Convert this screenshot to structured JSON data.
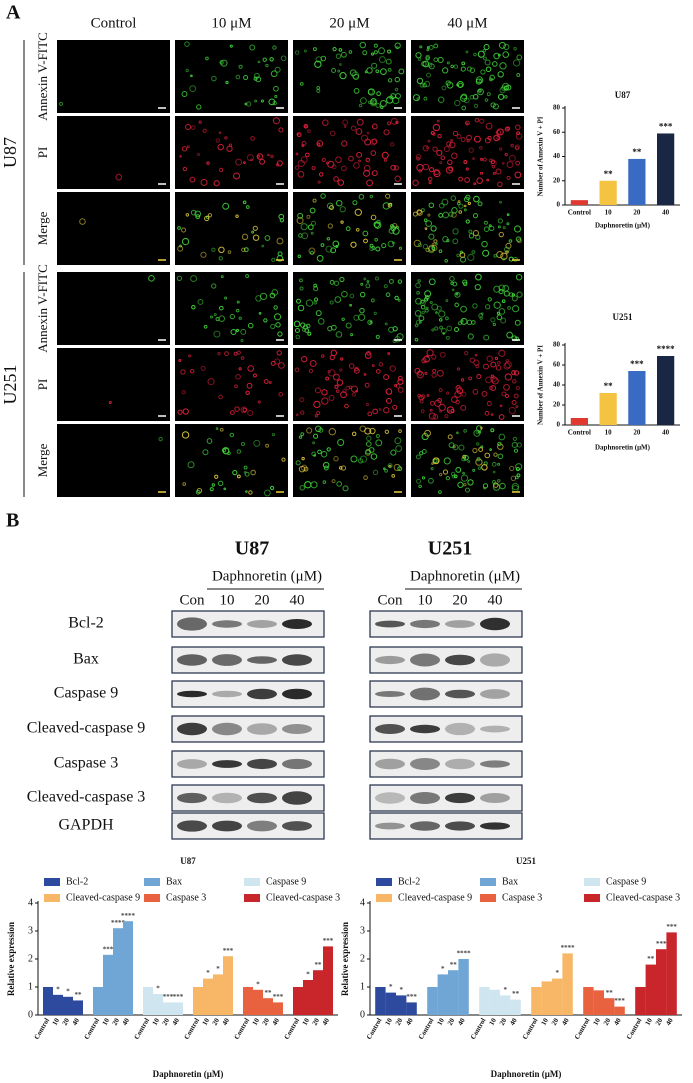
{
  "panel_a": {
    "label": "A",
    "columns": [
      "Control",
      "10 μM",
      "20 μM",
      "40 μM"
    ],
    "groups": [
      {
        "name": "U87",
        "rows": [
          "Annexin V-FITC",
          "PI",
          "Merge"
        ]
      },
      {
        "name": "U251",
        "rows": [
          "Annexin V-FITC",
          "PI",
          "Merge"
        ]
      }
    ]
  },
  "panel_b": {
    "label": "B",
    "blots": [
      {
        "cell_line": "U87",
        "treatment": "Daphnoretin (μM)",
        "lanes": [
          "Con",
          "10",
          "20",
          "40"
        ]
      },
      {
        "cell_line": "U251",
        "treatment": "Daphnoretin (μM)",
        "lanes": [
          "Con",
          "10",
          "20",
          "40"
        ]
      }
    ],
    "proteins": [
      "Bcl-2",
      "Bax",
      "Caspase 9",
      "Cleaved-caspase 9",
      "Caspase 3",
      "Cleaved-caspase 3",
      "GAPDH"
    ]
  },
  "chart_data": [
    {
      "type": "bar",
      "title": "U87",
      "x_label": "Daphnoretin (μM)",
      "y_label": "Number of Annexin V + PI",
      "categories": [
        "Control",
        "10",
        "20",
        "40"
      ],
      "values": [
        4,
        20,
        38,
        59
      ],
      "colors": [
        "#e03a30",
        "#f5c342",
        "#3a6bc4",
        "#1a2744"
      ],
      "significance": [
        null,
        "**",
        "**",
        "***"
      ],
      "ylim": [
        0,
        80
      ],
      "yticks": [
        0,
        20,
        40,
        60,
        80
      ]
    },
    {
      "type": "bar",
      "title": "U251",
      "x_label": "Daphnoretin (μM)",
      "y_label": "Number of Annexin V + PI",
      "categories": [
        "Control",
        "10",
        "20",
        "40"
      ],
      "values": [
        7,
        32,
        54,
        69
      ],
      "colors": [
        "#e03a30",
        "#f5c342",
        "#3a6bc4",
        "#1a2744"
      ],
      "significance": [
        null,
        "**",
        "***",
        "****"
      ],
      "ylim": [
        0,
        80
      ],
      "yticks": [
        0,
        20,
        40,
        60,
        80
      ]
    },
    {
      "type": "grouped_bar",
      "title": "U87",
      "x_label": "Daphnoretin (μM)",
      "y_label": "Relative expression",
      "categories": [
        "Control",
        "10",
        "20",
        "40"
      ],
      "ylim": [
        0,
        4
      ],
      "yticks": [
        0,
        1,
        2,
        3,
        4
      ],
      "legend": "top",
      "series": [
        {
          "name": "Bcl-2",
          "color": "#2e4a9e",
          "values": [
            1,
            0.72,
            0.65,
            0.52
          ],
          "significance": [
            null,
            "*",
            "*",
            "**"
          ]
        },
        {
          "name": "Bax",
          "color": "#6fa6d6",
          "values": [
            1,
            2.15,
            3.1,
            3.35
          ],
          "significance": [
            null,
            "***",
            "****",
            "****"
          ]
        },
        {
          "name": "Caspase 9",
          "color": "#cfe5f0",
          "values": [
            1,
            0.75,
            0.45,
            0.45
          ],
          "significance": [
            null,
            "*",
            "***",
            "***"
          ]
        },
        {
          "name": "Cleaved-caspase 9",
          "color": "#f7b766",
          "values": [
            1,
            1.3,
            1.45,
            2.1
          ],
          "significance": [
            null,
            "*",
            "*",
            "***"
          ]
        },
        {
          "name": "Caspase 3",
          "color": "#e8623f",
          "values": [
            1,
            0.9,
            0.6,
            0.45
          ],
          "significance": [
            null,
            "*",
            "**",
            "***"
          ]
        },
        {
          "name": "Cleaved-caspase 3",
          "color": "#c8262a",
          "values": [
            1,
            1.25,
            1.6,
            2.45
          ],
          "significance": [
            null,
            "*",
            "**",
            "***"
          ]
        }
      ]
    },
    {
      "type": "grouped_bar",
      "title": "U251",
      "x_label": "Daphnoretin (μM)",
      "y_label": "Relative expression",
      "categories": [
        "Control",
        "10",
        "20",
        "40"
      ],
      "ylim": [
        0,
        4
      ],
      "yticks": [
        0,
        1,
        2,
        3,
        4
      ],
      "legend": "top",
      "series": [
        {
          "name": "Bcl-2",
          "color": "#2e4a9e",
          "values": [
            1,
            0.8,
            0.7,
            0.45
          ],
          "significance": [
            null,
            "*",
            "*",
            "***"
          ]
        },
        {
          "name": "Bax",
          "color": "#6fa6d6",
          "values": [
            1,
            1.45,
            1.6,
            2.0
          ],
          "significance": [
            null,
            "*",
            "**",
            "****"
          ]
        },
        {
          "name": "Caspase 9",
          "color": "#cfe5f0",
          "values": [
            1,
            0.9,
            0.7,
            0.55
          ],
          "significance": [
            null,
            null,
            "*",
            "**"
          ]
        },
        {
          "name": "Cleaved-caspase 9",
          "color": "#f7b766",
          "values": [
            1,
            1.2,
            1.3,
            2.2
          ],
          "significance": [
            null,
            null,
            "*",
            "****"
          ]
        },
        {
          "name": "Caspase 3",
          "color": "#e8623f",
          "values": [
            1,
            0.88,
            0.6,
            0.3
          ],
          "significance": [
            null,
            null,
            "**",
            "***"
          ]
        },
        {
          "name": "Cleaved-caspase 3",
          "color": "#c8262a",
          "values": [
            1,
            1.8,
            2.35,
            2.95
          ],
          "significance": [
            null,
            "**",
            "***",
            "***"
          ]
        }
      ]
    }
  ]
}
